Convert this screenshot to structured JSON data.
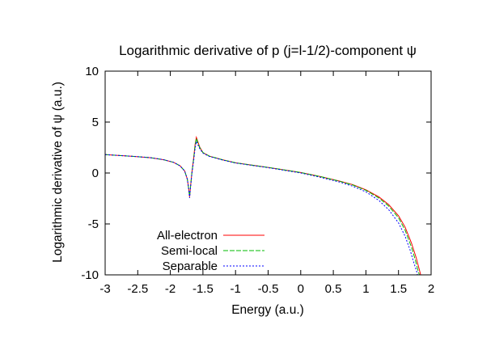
{
  "chart_data": {
    "type": "line",
    "title": "Logarithmic derivative of p (j=l-1/2)-component ψ",
    "xlabel": "Energy (a.u.)",
    "ylabel": "Logarithmic derivative of ψ (a.u.)",
    "xlim": [
      -3,
      2
    ],
    "ylim": [
      -10,
      10
    ],
    "xticks": [
      -3,
      -2.5,
      -2,
      -1.5,
      -1,
      -0.5,
      0,
      0.5,
      1,
      1.5,
      2
    ],
    "xtick_labels": [
      "-3",
      "-2.5",
      "-2",
      "-1.5",
      "-1",
      "-0.5",
      "0",
      "0.5",
      "1",
      "1.5",
      "2"
    ],
    "yticks": [
      -10,
      -5,
      0,
      5,
      10
    ],
    "ytick_labels": [
      "-10",
      "-5",
      "0",
      "5",
      "10"
    ],
    "grid": false,
    "legend_position": "bottom-left",
    "series": [
      {
        "name": "All-electron",
        "color": "#ff0000",
        "dash": "none",
        "points": [
          [
            -3.0,
            1.8
          ],
          [
            -2.6,
            1.65
          ],
          [
            -2.3,
            1.5
          ],
          [
            -2.1,
            1.3
          ],
          [
            -1.95,
            1.05
          ],
          [
            -1.85,
            0.7
          ],
          [
            -1.78,
            0.2
          ],
          [
            -1.74,
            -0.6
          ],
          [
            -1.72,
            -1.5
          ],
          [
            -1.705,
            -2.35
          ],
          [
            -1.69,
            -1.3
          ],
          [
            -1.67,
            0.0
          ],
          [
            -1.64,
            1.6
          ],
          [
            -1.62,
            2.8
          ],
          [
            -1.6,
            3.5
          ],
          [
            -1.58,
            3.1
          ],
          [
            -1.55,
            2.55
          ],
          [
            -1.5,
            2.0
          ],
          [
            -1.4,
            1.65
          ],
          [
            -1.2,
            1.3
          ],
          [
            -1.0,
            1.0
          ],
          [
            -0.5,
            0.55
          ],
          [
            0.0,
            0.05
          ],
          [
            0.3,
            -0.35
          ],
          [
            0.6,
            -0.8
          ],
          [
            0.8,
            -1.15
          ],
          [
            1.0,
            -1.65
          ],
          [
            1.2,
            -2.35
          ],
          [
            1.35,
            -3.1
          ],
          [
            1.5,
            -4.2
          ],
          [
            1.6,
            -5.3
          ],
          [
            1.7,
            -6.9
          ],
          [
            1.77,
            -8.3
          ],
          [
            1.82,
            -9.5
          ],
          [
            1.84,
            -10.0
          ]
        ]
      },
      {
        "name": "Semi-local",
        "color": "#00bb00",
        "dash": "6,2",
        "points": [
          [
            -3.0,
            1.8
          ],
          [
            -2.6,
            1.65
          ],
          [
            -2.3,
            1.5
          ],
          [
            -2.1,
            1.3
          ],
          [
            -1.95,
            1.05
          ],
          [
            -1.85,
            0.7
          ],
          [
            -1.78,
            0.2
          ],
          [
            -1.74,
            -0.6
          ],
          [
            -1.72,
            -1.5
          ],
          [
            -1.705,
            -2.3
          ],
          [
            -1.69,
            -1.3
          ],
          [
            -1.67,
            0.0
          ],
          [
            -1.64,
            1.5
          ],
          [
            -1.62,
            2.7
          ],
          [
            -1.6,
            3.4
          ],
          [
            -1.58,
            3.0
          ],
          [
            -1.55,
            2.5
          ],
          [
            -1.5,
            2.0
          ],
          [
            -1.4,
            1.65
          ],
          [
            -1.2,
            1.3
          ],
          [
            -1.0,
            1.0
          ],
          [
            -0.5,
            0.55
          ],
          [
            0.0,
            0.05
          ],
          [
            0.3,
            -0.35
          ],
          [
            0.6,
            -0.82
          ],
          [
            0.8,
            -1.18
          ],
          [
            1.0,
            -1.7
          ],
          [
            1.2,
            -2.45
          ],
          [
            1.35,
            -3.25
          ],
          [
            1.5,
            -4.4
          ],
          [
            1.6,
            -5.6
          ],
          [
            1.7,
            -7.3
          ],
          [
            1.76,
            -8.6
          ],
          [
            1.8,
            -9.6
          ],
          [
            1.82,
            -10.0
          ]
        ]
      },
      {
        "name": "Separable",
        "color": "#0000ff",
        "dash": "2,2",
        "points": [
          [
            -3.0,
            1.8
          ],
          [
            -2.6,
            1.65
          ],
          [
            -2.3,
            1.5
          ],
          [
            -2.1,
            1.3
          ],
          [
            -1.95,
            1.05
          ],
          [
            -1.85,
            0.7
          ],
          [
            -1.78,
            0.2
          ],
          [
            -1.74,
            -0.6
          ],
          [
            -1.72,
            -1.5
          ],
          [
            -1.705,
            -2.45
          ],
          [
            -1.69,
            -1.4
          ],
          [
            -1.67,
            -0.1
          ],
          [
            -1.64,
            1.3
          ],
          [
            -1.62,
            2.4
          ],
          [
            -1.6,
            3.1
          ],
          [
            -1.58,
            2.8
          ],
          [
            -1.55,
            2.4
          ],
          [
            -1.5,
            1.95
          ],
          [
            -1.4,
            1.62
          ],
          [
            -1.2,
            1.28
          ],
          [
            -1.0,
            0.98
          ],
          [
            -0.5,
            0.52
          ],
          [
            0.0,
            0.0
          ],
          [
            0.3,
            -0.42
          ],
          [
            0.6,
            -0.9
          ],
          [
            0.8,
            -1.3
          ],
          [
            1.0,
            -1.85
          ],
          [
            1.2,
            -2.7
          ],
          [
            1.35,
            -3.6
          ],
          [
            1.5,
            -4.9
          ],
          [
            1.6,
            -6.2
          ],
          [
            1.68,
            -7.6
          ],
          [
            1.74,
            -8.9
          ],
          [
            1.78,
            -9.7
          ],
          [
            1.79,
            -10.0
          ]
        ]
      }
    ]
  }
}
